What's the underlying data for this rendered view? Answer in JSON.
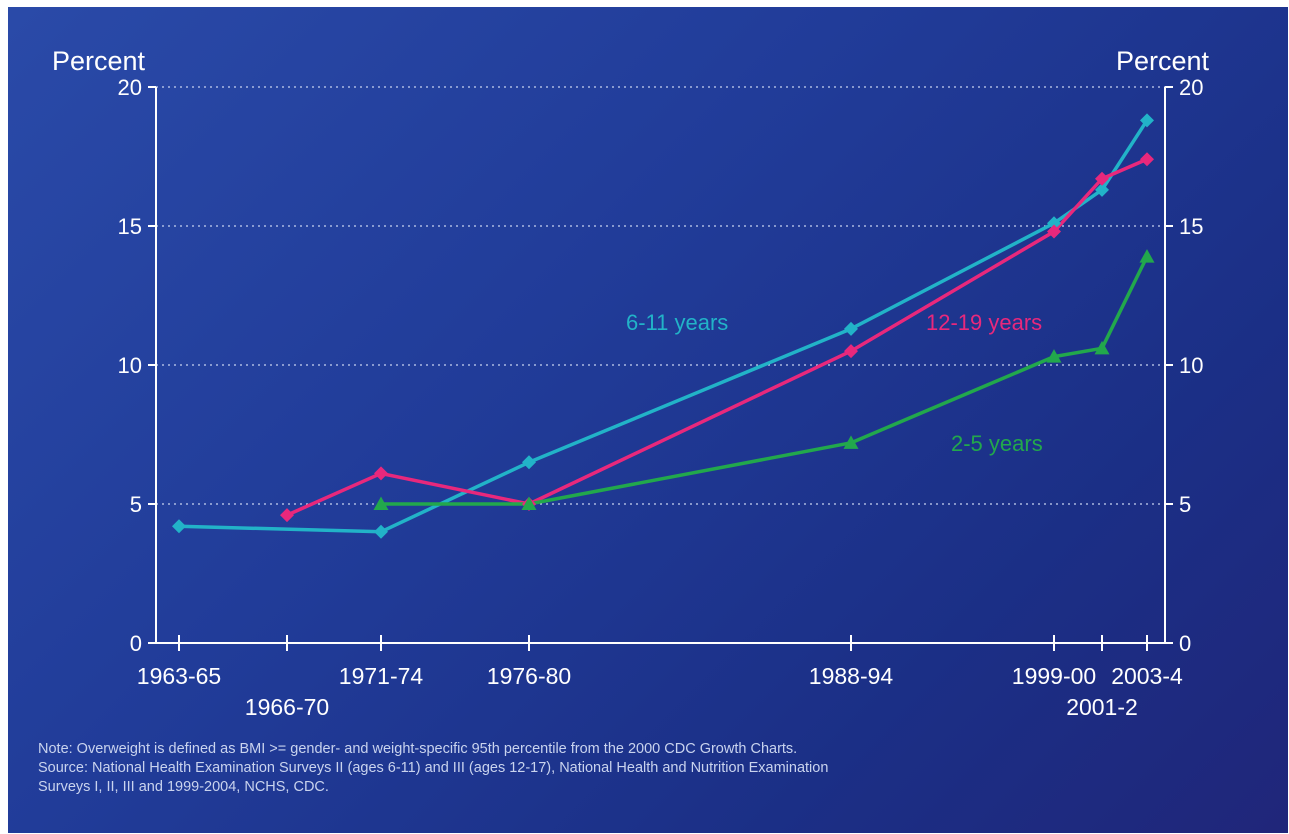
{
  "chart_data": {
    "type": "line",
    "ylabel_left": "Percent",
    "ylabel_right": "Percent",
    "ylim": [
      0,
      20
    ],
    "yticks": [
      0,
      5,
      10,
      15,
      20
    ],
    "grid": true,
    "grid_style": "dotted horizontal",
    "x_tick_labels": [
      {
        "label": "1963-65",
        "x": 1964,
        "row": 1
      },
      {
        "label": "1966-70",
        "x": 1968,
        "row": 2
      },
      {
        "label": "1971-74",
        "x": 1972.5,
        "row": 1
      },
      {
        "label": "1976-80",
        "x": 1978,
        "row": 1
      },
      {
        "label": "1988-94",
        "x": 1991,
        "row": 1
      },
      {
        "label": "1999-00",
        "x": 1999.5,
        "row": 1
      },
      {
        "label": "2001-2",
        "x": 2001.5,
        "row": 2
      },
      {
        "label": "2003-4",
        "x": 2003.5,
        "row": 1
      }
    ],
    "series": [
      {
        "name": "6-11 years",
        "color": "#22b3c8",
        "marker": "diamond",
        "points": [
          [
            1964,
            4.2
          ],
          [
            1972.5,
            4.0
          ],
          [
            1978,
            6.5
          ],
          [
            1991,
            11.3
          ],
          [
            1999.5,
            15.1
          ],
          [
            2001.5,
            16.3
          ],
          [
            2003.5,
            18.8
          ]
        ]
      },
      {
        "name": "12-19 years",
        "color": "#e8287c",
        "marker": "diamond",
        "points": [
          [
            1968,
            4.6
          ],
          [
            1972.5,
            6.1
          ],
          [
            1978,
            5.0
          ],
          [
            1991,
            10.5
          ],
          [
            1999.5,
            14.8
          ],
          [
            2001.5,
            16.7
          ],
          [
            2003.5,
            17.4
          ]
        ]
      },
      {
        "name": "2-5 years",
        "color": "#22a84c",
        "marker": "triangle",
        "points": [
          [
            1972.5,
            5.0
          ],
          [
            1978,
            5.0
          ],
          [
            1991,
            7.2
          ],
          [
            1999.5,
            10.3
          ],
          [
            2001.5,
            10.6
          ],
          [
            2003.5,
            13.9
          ]
        ]
      }
    ],
    "annotations": [
      {
        "series": "6-11 years",
        "text": "6-11 years"
      },
      {
        "series": "12-19 years",
        "text": "12-19 years"
      },
      {
        "series": "2-5 years",
        "text": "2-5 years"
      }
    ]
  },
  "notes": {
    "line1": "Note: Overweight is defined as BMI >= gender- and weight-specific 95th percentile from the 2000 CDC Growth Charts.",
    "line2": "Source: National Health Examination Surveys II (ages 6-11) and III (ages 12-17), National Health and Nutrition Examination",
    "line3": "Surveys I, II, III and 1999-2004, NCHS, CDC."
  }
}
